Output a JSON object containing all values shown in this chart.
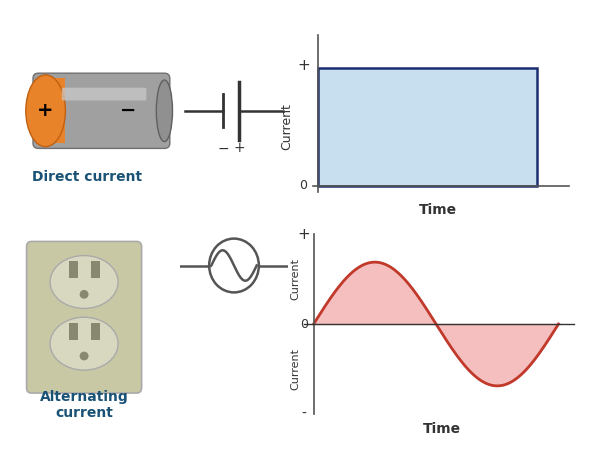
{
  "dc_graph": {
    "rect_color": "#c8dff0",
    "line_color": "#1a2e6e",
    "xlabel": "Time",
    "ylabel": "Current",
    "plus_label": "+",
    "zero_label": "0"
  },
  "ac_graph": {
    "fill_color": "#f5b8b8",
    "line_color": "#c0392b",
    "zero_line_color": "#333333",
    "xlabel": "Time",
    "plus_label": "+",
    "zero_label": "0",
    "minus_label": "-"
  },
  "dc_label": "Direct current",
  "ac_label": "Alternating\ncurrent",
  "bg_color": "#ffffff",
  "label_color": "#1a5276",
  "axis_color": "#555555",
  "text_color": "#333333",
  "battery_orange": "#e8832a",
  "battery_gray": "#a0a0a0",
  "outlet_color": "#c8c8a5",
  "outlet_socket_color": "#d8d8c0",
  "outlet_hole_color": "#888870"
}
